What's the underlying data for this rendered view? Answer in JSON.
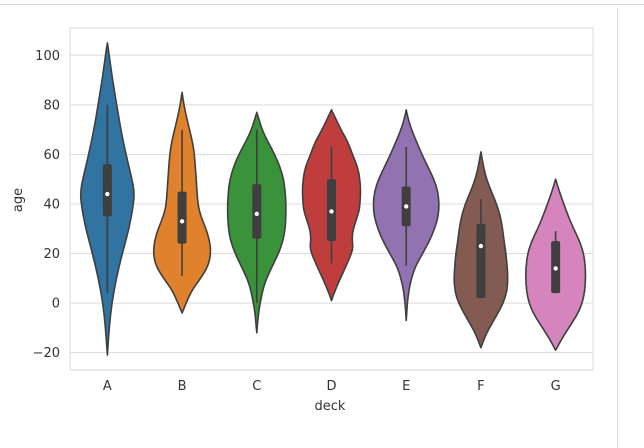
{
  "chart_data": {
    "type": "violin",
    "title": "",
    "xlabel": "deck",
    "ylabel": "age",
    "ylim": [
      -27,
      111
    ],
    "yticks": [
      -20,
      0,
      20,
      40,
      60,
      80,
      100
    ],
    "ytick_labels": [
      "−20",
      "0",
      "20",
      "40",
      "60",
      "80",
      "100"
    ],
    "grid": true,
    "categories": [
      "A",
      "B",
      "C",
      "D",
      "E",
      "F",
      "G"
    ],
    "colors": [
      "#3174a1",
      "#e1812c",
      "#3a923a",
      "#c03d3e",
      "#9372b2",
      "#845b53",
      "#d684bd"
    ],
    "violins": [
      {
        "category": "A",
        "y_min": -21,
        "y_max": 105,
        "q1": 35,
        "median": 44,
        "q3": 56,
        "whisker_low": 4,
        "whisker_high": 80,
        "profile": [
          [
            -21,
            0.0
          ],
          [
            -10,
            0.05
          ],
          [
            0,
            0.12
          ],
          [
            10,
            0.24
          ],
          [
            20,
            0.4
          ],
          [
            30,
            0.58
          ],
          [
            40,
            0.7
          ],
          [
            45,
            0.72
          ],
          [
            50,
            0.66
          ],
          [
            60,
            0.5
          ],
          [
            70,
            0.36
          ],
          [
            80,
            0.25
          ],
          [
            90,
            0.14
          ],
          [
            100,
            0.05
          ],
          [
            105,
            0.0
          ]
        ]
      },
      {
        "category": "B",
        "y_min": -4,
        "y_max": 85,
        "q1": 24,
        "median": 33,
        "q3": 45,
        "whisker_low": 11,
        "whisker_high": 70,
        "profile": [
          [
            -4,
            0.0
          ],
          [
            5,
            0.25
          ],
          [
            10,
            0.5
          ],
          [
            15,
            0.7
          ],
          [
            20,
            0.77
          ],
          [
            25,
            0.74
          ],
          [
            30,
            0.64
          ],
          [
            35,
            0.5
          ],
          [
            40,
            0.42
          ],
          [
            50,
            0.38
          ],
          [
            60,
            0.33
          ],
          [
            65,
            0.28
          ],
          [
            70,
            0.2
          ],
          [
            75,
            0.12
          ],
          [
            80,
            0.05
          ],
          [
            85,
            0.0
          ]
        ]
      },
      {
        "category": "C",
        "y_min": -12,
        "y_max": 77,
        "q1": 26,
        "median": 36,
        "q3": 48,
        "whisker_low": 0,
        "whisker_high": 70,
        "profile": [
          [
            -12,
            0.0
          ],
          [
            -5,
            0.04
          ],
          [
            0,
            0.09
          ],
          [
            8,
            0.2
          ],
          [
            15,
            0.42
          ],
          [
            20,
            0.58
          ],
          [
            25,
            0.7
          ],
          [
            30,
            0.76
          ],
          [
            36,
            0.78
          ],
          [
            40,
            0.78
          ],
          [
            45,
            0.76
          ],
          [
            50,
            0.72
          ],
          [
            55,
            0.62
          ],
          [
            60,
            0.48
          ],
          [
            65,
            0.3
          ],
          [
            70,
            0.14
          ],
          [
            77,
            0.0
          ]
        ]
      },
      {
        "category": "D",
        "y_min": 1,
        "y_max": 78,
        "q1": 25,
        "median": 37,
        "q3": 50,
        "whisker_low": 16,
        "whisker_high": 63,
        "profile": [
          [
            1,
            0.0
          ],
          [
            6,
            0.12
          ],
          [
            12,
            0.3
          ],
          [
            18,
            0.48
          ],
          [
            22,
            0.58
          ],
          [
            26,
            0.55
          ],
          [
            30,
            0.58
          ],
          [
            37,
            0.74
          ],
          [
            40,
            0.76
          ],
          [
            45,
            0.78
          ],
          [
            50,
            0.76
          ],
          [
            55,
            0.7
          ],
          [
            60,
            0.56
          ],
          [
            65,
            0.44
          ],
          [
            70,
            0.25
          ],
          [
            78,
            0.0
          ]
        ]
      },
      {
        "category": "E",
        "y_min": -7,
        "y_max": 78,
        "q1": 31,
        "median": 39,
        "q3": 47,
        "whisker_low": 15,
        "whisker_high": 63,
        "profile": [
          [
            -7,
            0.0
          ],
          [
            0,
            0.03
          ],
          [
            5,
            0.07
          ],
          [
            10,
            0.14
          ],
          [
            15,
            0.25
          ],
          [
            20,
            0.44
          ],
          [
            25,
            0.62
          ],
          [
            30,
            0.76
          ],
          [
            35,
            0.86
          ],
          [
            40,
            0.88
          ],
          [
            45,
            0.85
          ],
          [
            50,
            0.74
          ],
          [
            55,
            0.58
          ],
          [
            60,
            0.42
          ],
          [
            65,
            0.28
          ],
          [
            70,
            0.14
          ],
          [
            75,
            0.04
          ],
          [
            78,
            0.0
          ]
        ]
      },
      {
        "category": "F",
        "y_min": -18,
        "y_max": 61,
        "q1": 2,
        "median": 23,
        "q3": 32,
        "whisker_low": 2,
        "whisker_high": 42,
        "profile": [
          [
            -18,
            0.0
          ],
          [
            -12,
            0.15
          ],
          [
            -5,
            0.42
          ],
          [
            0,
            0.6
          ],
          [
            5,
            0.7
          ],
          [
            10,
            0.72
          ],
          [
            15,
            0.7
          ],
          [
            20,
            0.67
          ],
          [
            25,
            0.62
          ],
          [
            30,
            0.58
          ],
          [
            35,
            0.52
          ],
          [
            40,
            0.42
          ],
          [
            45,
            0.28
          ],
          [
            50,
            0.15
          ],
          [
            55,
            0.07
          ],
          [
            61,
            0.0
          ]
        ]
      },
      {
        "category": "G",
        "y_min": -19,
        "y_max": 50,
        "q1": 4,
        "median": 14,
        "q3": 25,
        "whisker_low": 4,
        "whisker_high": 29,
        "profile": [
          [
            -19,
            0.0
          ],
          [
            -14,
            0.18
          ],
          [
            -8,
            0.44
          ],
          [
            -3,
            0.64
          ],
          [
            2,
            0.75
          ],
          [
            8,
            0.8
          ],
          [
            14,
            0.8
          ],
          [
            20,
            0.75
          ],
          [
            25,
            0.64
          ],
          [
            30,
            0.48
          ],
          [
            35,
            0.34
          ],
          [
            40,
            0.22
          ],
          [
            45,
            0.1
          ],
          [
            50,
            0.0
          ]
        ]
      }
    ]
  }
}
